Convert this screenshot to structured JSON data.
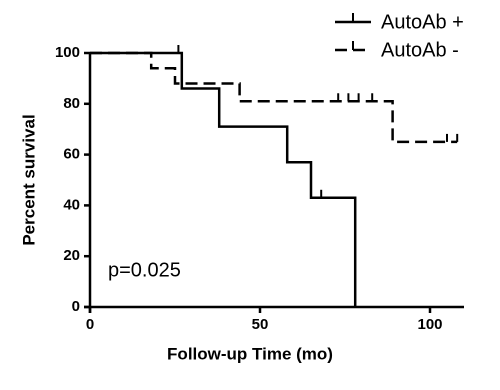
{
  "chart_data": {
    "type": "survival",
    "xlabel": "Follow-up Time (mo)",
    "ylabel": "Percent survival",
    "annotation": "p=0.025",
    "xlim": [
      0,
      110
    ],
    "ylim": [
      0,
      100
    ],
    "xticks": [
      0,
      50,
      100
    ],
    "yticks": [
      0,
      20,
      40,
      60,
      80,
      100
    ],
    "legend": "top-right",
    "series": [
      {
        "name": "AutoAb +",
        "color": "#000000",
        "dash": false,
        "x": [
          0,
          27,
          38,
          58,
          65,
          78
        ],
        "values": [
          100,
          86,
          71,
          57,
          43,
          0
        ],
        "censored": {
          "x": [
            26,
            68
          ],
          "values": [
            100,
            43
          ]
        }
      },
      {
        "name": "AutoAb -",
        "color": "#000000",
        "dash": true,
        "x": [
          0,
          18,
          25,
          44,
          89,
          108
        ],
        "values": [
          100,
          94,
          88,
          81,
          65,
          65
        ],
        "censored": {
          "x": [
            73,
            76,
            79,
            83,
            105,
            108
          ],
          "values": [
            81,
            81,
            81,
            81,
            65,
            65
          ]
        }
      }
    ]
  }
}
